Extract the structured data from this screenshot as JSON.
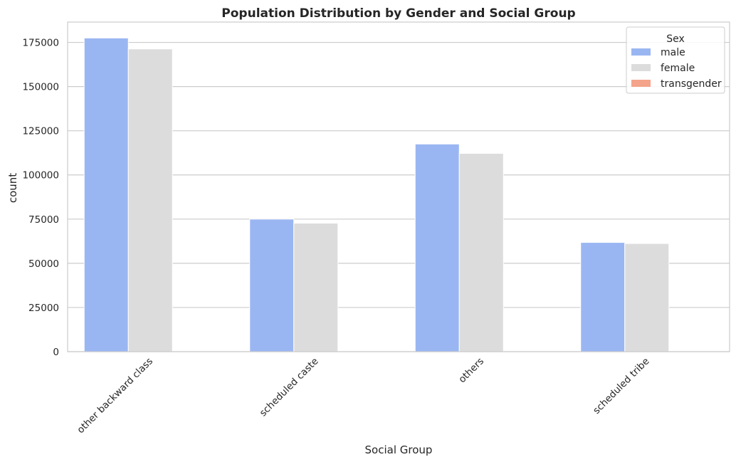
{
  "chart_data": {
    "type": "bar",
    "title": "Population Distribution by Gender and Social Group",
    "xlabel": "Social Group",
    "ylabel": "count",
    "categories": [
      "other backward class",
      "scheduled caste",
      "others",
      "scheduled tribe"
    ],
    "series": [
      {
        "name": "male",
        "color": "#9ab6f2",
        "values": [
          177500,
          75000,
          117500,
          61800
        ]
      },
      {
        "name": "female",
        "color": "#dcdcdc",
        "values": [
          171300,
          72700,
          112200,
          61200
        ]
      },
      {
        "name": "transgender",
        "color": "#f4a48a",
        "values": [
          20,
          10,
          15,
          5
        ]
      }
    ],
    "ylim": [
      0,
      186500
    ],
    "yticks": [
      0,
      25000,
      50000,
      75000,
      100000,
      125000,
      150000,
      175000
    ],
    "grid": true,
    "legend": {
      "title": "Sex",
      "placement": "top-right"
    }
  }
}
